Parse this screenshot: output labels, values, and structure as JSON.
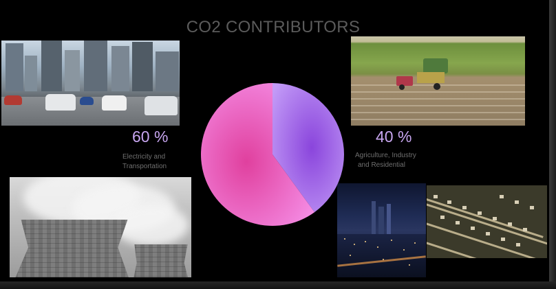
{
  "slide": {
    "title": "CO2 CONTRIBUTORS"
  },
  "labels": {
    "left_percent": "60 %",
    "left_caption_line1": "Electricity and",
    "left_caption_line2": "Transportation",
    "right_percent": "40 %",
    "right_caption_line1": "Agriculture, Industry",
    "right_caption_line2": "and Residential"
  },
  "colors": {
    "background": "#000000",
    "title": "#5b5b5b",
    "percent_text": "#c8a6f0",
    "caption_text": "#6f6f6f",
    "slice_large": "#ee86dc",
    "slice_small": "#b57cf0"
  },
  "images": [
    {
      "name": "traffic-photo"
    },
    {
      "name": "farm-harvest-photo"
    },
    {
      "name": "cooling-towers-photo"
    },
    {
      "name": "city-night-photo"
    },
    {
      "name": "suburb-aerial-photo"
    }
  ],
  "chart_data": {
    "type": "pie",
    "slices": [
      {
        "label": "Electricity and Transportation",
        "value": 60,
        "color": "#ee86dc"
      },
      {
        "label": "Agriculture, Industry and Residential",
        "value": 40,
        "color": "#b57cf0"
      }
    ]
  }
}
